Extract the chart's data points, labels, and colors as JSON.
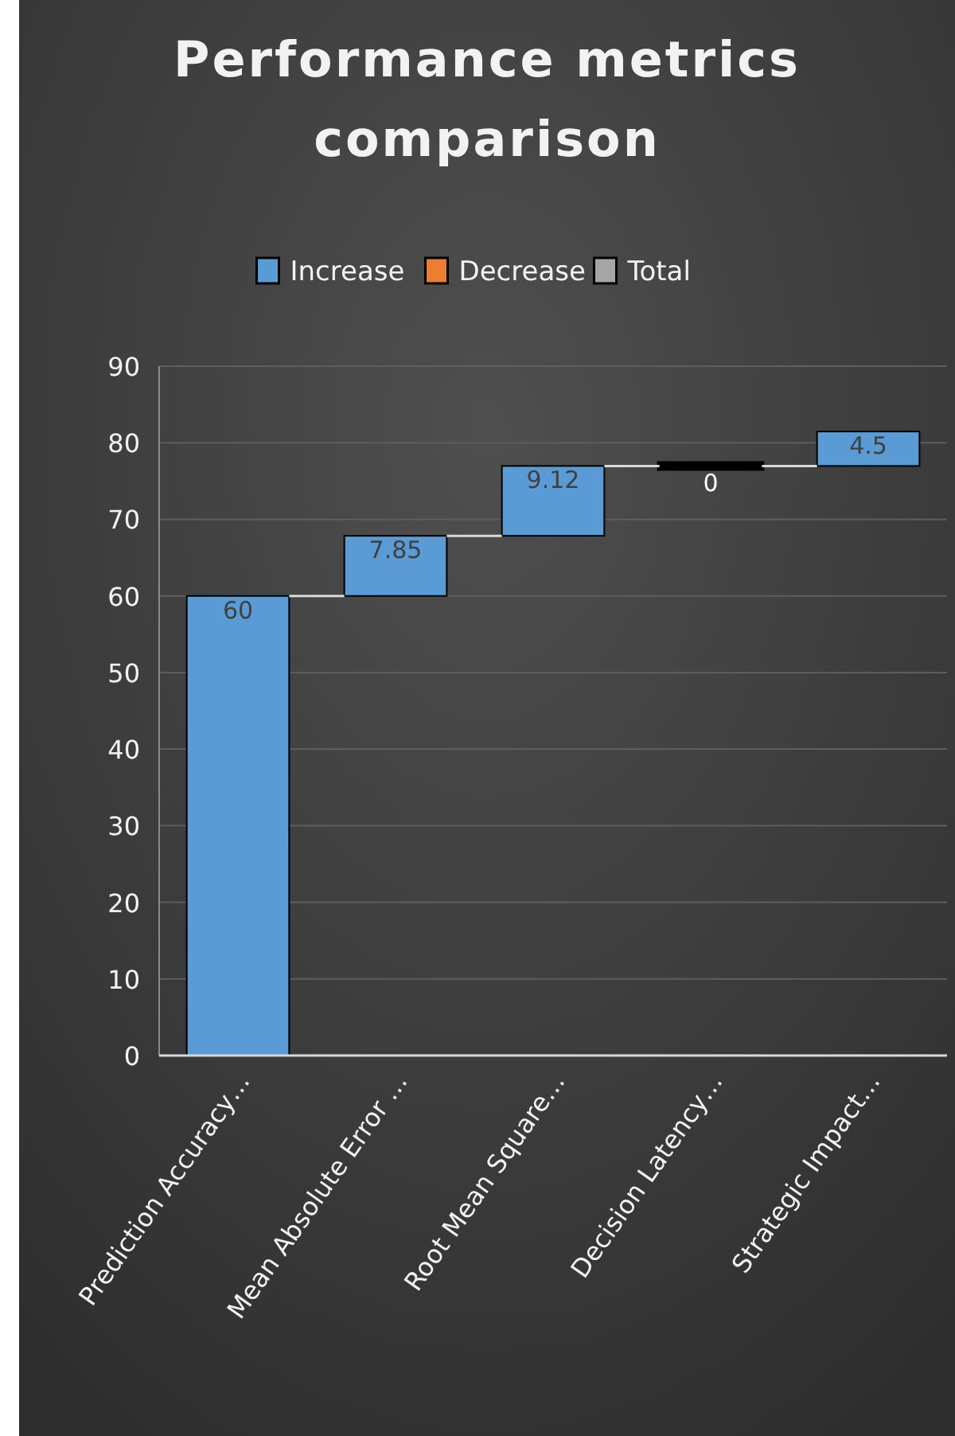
{
  "chart_data": {
    "type": "bar",
    "title": "Performance metrics comparison",
    "categories": [
      "Prediction Accuracy…",
      "Mean Absolute Error …",
      "Root Mean Square…",
      "Decision Latency…",
      "Strategic Impact…"
    ],
    "series": [
      {
        "name": "Increase",
        "color": "#5b9bd5",
        "values": [
          60,
          7.85,
          9.12,
          0,
          4.5
        ],
        "base": [
          0,
          60,
          67.85,
          76.97,
          76.97
        ]
      },
      {
        "name": "Decrease",
        "color": "#ed7d31",
        "values": [
          null,
          null,
          null,
          null,
          null
        ]
      },
      {
        "name": "Total",
        "color": "#a5a5a5",
        "values": [
          null,
          null,
          null,
          null,
          null
        ]
      }
    ],
    "ylim": [
      0,
      90
    ],
    "yticks": [
      0,
      10,
      20,
      30,
      40,
      50,
      60,
      70,
      80,
      90
    ],
    "grid": "y",
    "legend": "top",
    "data_labels": true
  }
}
